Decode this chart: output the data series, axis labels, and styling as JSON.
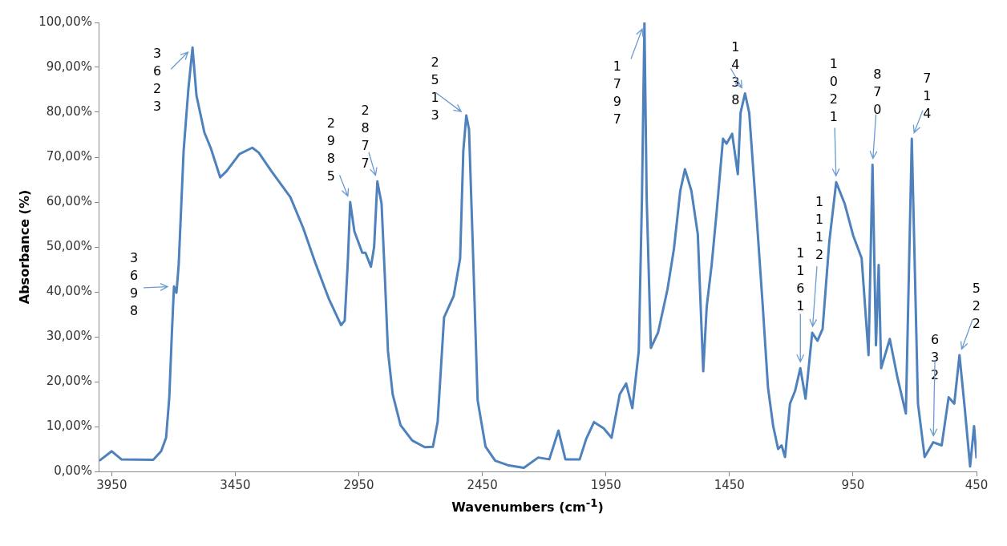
{
  "chart_data": {
    "type": "line",
    "xlabel": "Wavenumbers (cm$^{-1}$)",
    "ylabel": "Absorbance (%)",
    "xlim": [
      4000,
      450
    ],
    "xticks": [
      3950,
      3450,
      2950,
      2450,
      1950,
      1450,
      950,
      450
    ],
    "ylim": [
      0,
      100
    ],
    "yticks": [
      {
        "value": 0,
        "label": "0,00%"
      },
      {
        "value": 10,
        "label": "10,00%"
      },
      {
        "value": 20,
        "label": "20,00%"
      },
      {
        "value": 30,
        "label": "30,00%"
      },
      {
        "value": 40,
        "label": "40,00%"
      },
      {
        "value": 50,
        "label": "50,00%"
      },
      {
        "value": 60,
        "label": "60,00%"
      },
      {
        "value": 70,
        "label": "70,00%"
      },
      {
        "value": 80,
        "label": "80,00%"
      },
      {
        "value": 90,
        "label": "90,00%"
      },
      {
        "value": 100,
        "label": "100,00%"
      }
    ],
    "grid": false,
    "legend": false,
    "marker": "none",
    "line_style": "solid",
    "series": [
      {
        "color": "#4f81bd",
        "x": [
          4000,
          3950,
          3911,
          3782,
          3750,
          3730,
          3717,
          3707,
          3698,
          3688,
          3679,
          3659,
          3640,
          3623,
          3607,
          3575,
          3549,
          3511,
          3485,
          3433,
          3381,
          3355,
          3304,
          3227,
          3175,
          3123,
          3071,
          3022,
          3007,
          2994,
          2985,
          2968,
          2936,
          2923,
          2901,
          2888,
          2875,
          2858,
          2845,
          2832,
          2813,
          2781,
          2734,
          2683,
          2650,
          2631,
          2605,
          2566,
          2540,
          2527,
          2515,
          2504,
          2489,
          2469,
          2437,
          2398,
          2347,
          2282,
          2224,
          2179,
          2142,
          2114,
          2056,
          2030,
          1998,
          1959,
          1927,
          1894,
          1868,
          1843,
          1817,
          1804,
          1794,
          1785,
          1768,
          1739,
          1701,
          1675,
          1649,
          1630,
          1604,
          1578,
          1556,
          1542,
          1522,
          1501,
          1476,
          1462,
          1439,
          1416,
          1405,
          1387,
          1370,
          1342,
          1315,
          1294,
          1273,
          1253,
          1239,
          1225,
          1205,
          1184,
          1163,
          1142,
          1115,
          1094,
          1073,
          1046,
          1018,
          984,
          949,
          915,
          887,
          871,
          857,
          846,
          836,
          801,
          770,
          736,
          712,
          687,
          660,
          625,
          591,
          563,
          540,
          519,
          497,
          476,
          460,
          450
        ],
        "values": [
          2.4,
          4.5,
          2.7,
          2.6,
          4.5,
          7.5,
          16.5,
          30.2,
          41.2,
          39.8,
          46,
          71.4,
          85,
          94.4,
          83.7,
          75.5,
          72,
          65.5,
          66.9,
          70.7,
          72.1,
          71,
          66.9,
          61.1,
          54.2,
          46,
          38.4,
          32.6,
          33.6,
          47.3,
          60,
          53.5,
          48.7,
          48.7,
          45.6,
          50,
          64.6,
          59.7,
          43.9,
          26.8,
          17.2,
          10.3,
          6.9,
          5.4,
          5.5,
          11,
          34.3,
          39.1,
          47.4,
          71.4,
          79.3,
          76.2,
          50.8,
          15.8,
          5.5,
          2.4,
          1.4,
          0.8,
          3.1,
          2.7,
          9.1,
          2.7,
          2.7,
          7.2,
          11,
          9.6,
          7.5,
          17.2,
          19.6,
          14.1,
          26.8,
          61.1,
          99.9,
          61,
          27.5,
          30.9,
          40.5,
          49.4,
          62.5,
          67.3,
          62.5,
          52.8,
          22.3,
          36.7,
          46,
          58.3,
          74.1,
          73,
          75.2,
          66.2,
          79.9,
          84.2,
          79.9,
          58.3,
          36.7,
          18.7,
          10.1,
          5,
          5.8,
          3.2,
          15.1,
          18,
          23,
          16.2,
          30.9,
          29.1,
          31.7,
          51.1,
          64.4,
          59.7,
          52.5,
          47.5,
          25.9,
          68.3,
          28.1,
          46,
          23,
          29.5,
          20.9,
          12.9,
          74.1,
          15.1,
          3.2,
          6.5,
          5.8,
          16.5,
          15.1,
          25.9,
          13.7,
          1.1,
          10.1,
          2.9
        ]
      }
    ],
    "annotations": [
      {
        "text": "3698",
        "x": 3698,
        "y": 41.2
      },
      {
        "text": "3623",
        "x": 3623,
        "y": 94.4
      },
      {
        "text": "2985",
        "x": 2985,
        "y": 60
      },
      {
        "text": "2877",
        "x": 2875,
        "y": 64.6
      },
      {
        "text": "2513",
        "x": 2515,
        "y": 79.3
      },
      {
        "text": "1797",
        "x": 1794,
        "y": 99.9
      },
      {
        "text": "1438",
        "x": 1387,
        "y": 84.2
      },
      {
        "text": "1021",
        "x": 1018,
        "y": 64.4
      },
      {
        "text": "870",
        "x": 871,
        "y": 68.3
      },
      {
        "text": "714",
        "x": 712,
        "y": 74.1
      },
      {
        "text": "1161",
        "x": 1163,
        "y": 23
      },
      {
        "text": "1112",
        "x": 1115,
        "y": 30.9
      },
      {
        "text": "632",
        "x": 625,
        "y": 6.5
      },
      {
        "text": "522",
        "x": 519,
        "y": 25.9
      }
    ]
  }
}
